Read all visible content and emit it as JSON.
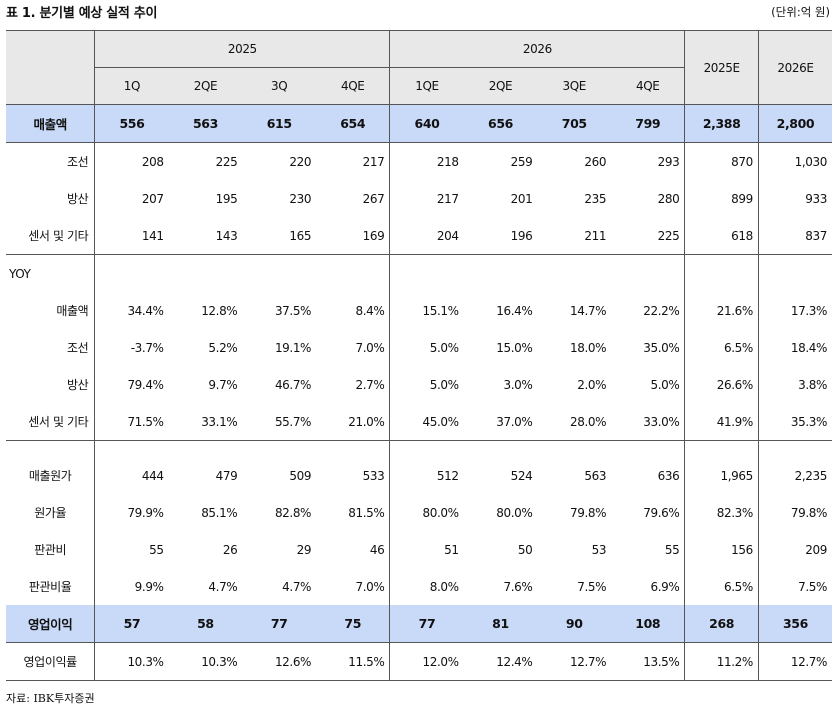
{
  "title": "표 1. 분기별 예상 실적 추이",
  "unit": "(단위:억 원)",
  "source": "자료: IBK투자증권",
  "header": {
    "year1": "2025",
    "year2": "2026",
    "quarters": [
      "1Q",
      "2QE",
      "3Q",
      "4QE",
      "1QE",
      "2QE",
      "3QE",
      "4QE"
    ],
    "annual": [
      "2025E",
      "2026E"
    ]
  },
  "rows": [
    {
      "label": "매출액",
      "values": [
        "556",
        "563",
        "615",
        "654",
        "640",
        "656",
        "705",
        "799",
        "2,388",
        "2,800"
      ]
    },
    {
      "label": "조선",
      "values": [
        "208",
        "225",
        "220",
        "217",
        "218",
        "259",
        "260",
        "293",
        "870",
        "1,030"
      ]
    },
    {
      "label": "방산",
      "values": [
        "207",
        "195",
        "230",
        "267",
        "217",
        "201",
        "235",
        "280",
        "899",
        "933"
      ]
    },
    {
      "label": "센서 및 기타",
      "values": [
        "141",
        "143",
        "165",
        "169",
        "204",
        "196",
        "211",
        "225",
        "618",
        "837"
      ]
    },
    {
      "label": "YOY"
    },
    {
      "label": "매출액",
      "values": [
        "34.4%",
        "12.8%",
        "37.5%",
        "8.4%",
        "15.1%",
        "16.4%",
        "14.7%",
        "22.2%",
        "21.6%",
        "17.3%"
      ]
    },
    {
      "label": "조선",
      "values": [
        "-3.7%",
        "5.2%",
        "19.1%",
        "7.0%",
        "5.0%",
        "15.0%",
        "18.0%",
        "35.0%",
        "6.5%",
        "18.4%"
      ]
    },
    {
      "label": "방산",
      "values": [
        "79.4%",
        "9.7%",
        "46.7%",
        "2.7%",
        "5.0%",
        "3.0%",
        "2.0%",
        "5.0%",
        "26.6%",
        "3.8%"
      ]
    },
    {
      "label": "센서 및 기타",
      "values": [
        "71.5%",
        "33.1%",
        "55.7%",
        "21.0%",
        "45.0%",
        "37.0%",
        "28.0%",
        "33.0%",
        "41.9%",
        "35.3%"
      ]
    },
    {
      "label": "매출원가",
      "values": [
        "444",
        "479",
        "509",
        "533",
        "512",
        "524",
        "563",
        "636",
        "1,965",
        "2,235"
      ]
    },
    {
      "label": "원가율",
      "values": [
        "79.9%",
        "85.1%",
        "82.8%",
        "81.5%",
        "80.0%",
        "80.0%",
        "79.8%",
        "79.6%",
        "82.3%",
        "79.8%"
      ]
    },
    {
      "label": "판관비",
      "values": [
        "55",
        "26",
        "29",
        "46",
        "51",
        "50",
        "53",
        "55",
        "156",
        "209"
      ]
    },
    {
      "label": "판관비율",
      "values": [
        "9.9%",
        "4.7%",
        "4.7%",
        "7.0%",
        "8.0%",
        "7.6%",
        "7.5%",
        "6.9%",
        "6.5%",
        "7.5%"
      ]
    },
    {
      "label": "영업이익",
      "values": [
        "57",
        "58",
        "77",
        "75",
        "77",
        "81",
        "90",
        "108",
        "268",
        "356"
      ]
    },
    {
      "label": "영업이익률",
      "values": [
        "10.3%",
        "10.3%",
        "12.6%",
        "11.5%",
        "12.0%",
        "12.4%",
        "12.7%",
        "13.5%",
        "11.2%",
        "12.7%"
      ]
    }
  ]
}
